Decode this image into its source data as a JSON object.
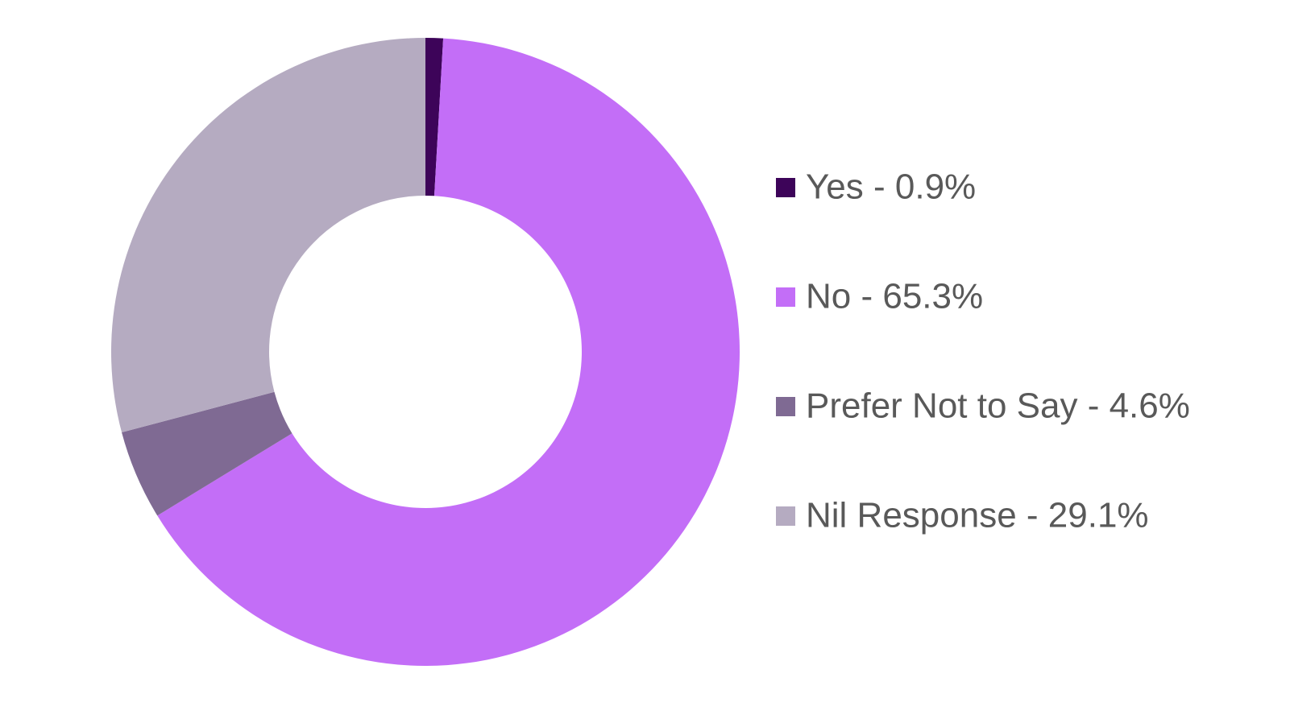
{
  "chart_data": {
    "type": "donut",
    "categories": [
      "Yes - 0.9%",
      "No - 65.3%",
      "Prefer Not to Say - 4.6%",
      "Nil Response - 29.1%"
    ],
    "values": [
      0.9,
      65.3,
      4.6,
      29.1
    ],
    "colors": [
      "#3d0459",
      "#c36ef7",
      "#7f6a93",
      "#b5abc1"
    ],
    "legend": "right"
  }
}
